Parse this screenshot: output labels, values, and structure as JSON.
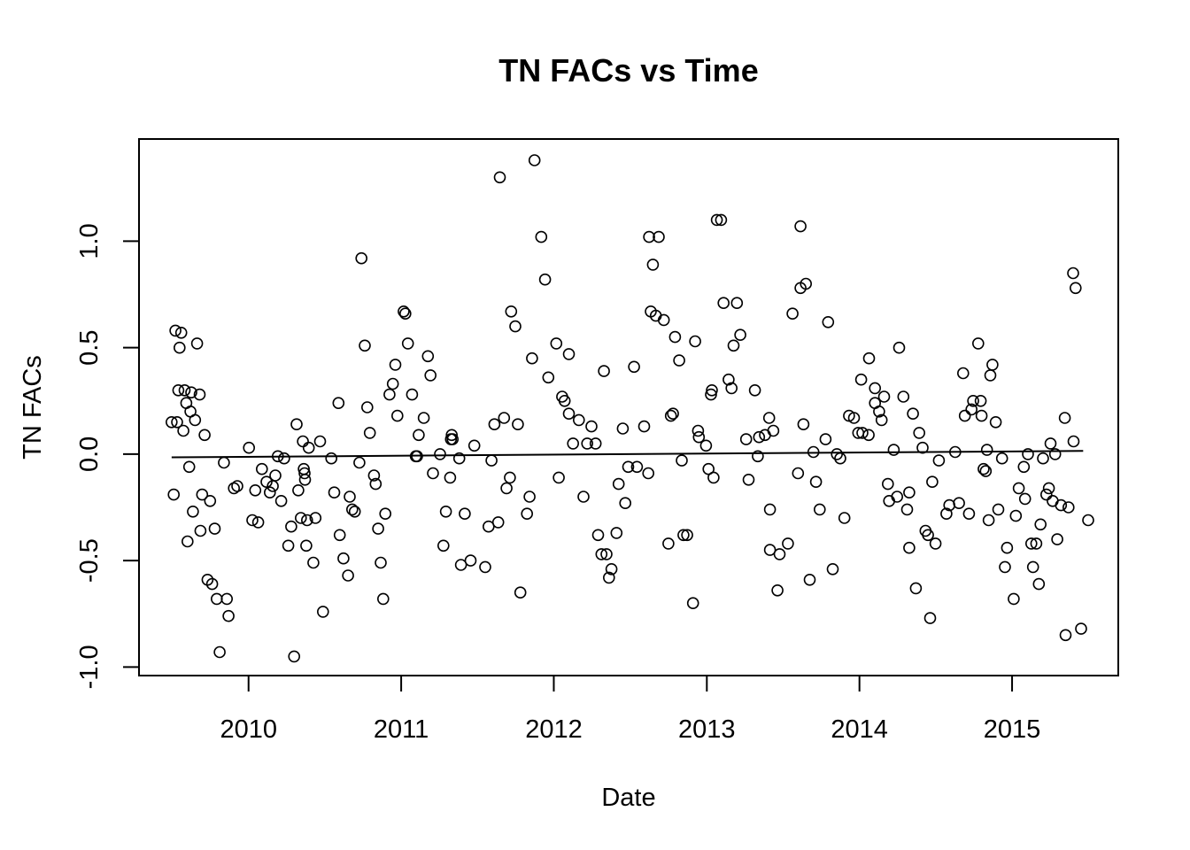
{
  "chart_data": {
    "type": "scatter",
    "title": "TN FACs vs Time",
    "xlabel": "Date",
    "ylabel": "TN FACs",
    "x_ticks": [
      "2010",
      "2011",
      "2012",
      "2013",
      "2014",
      "2015"
    ],
    "y_ticks": [
      "-1.0",
      "-0.5",
      "0.0",
      "0.5",
      "1.0"
    ],
    "xlim": [
      "2009-04-14",
      "2015-09-12"
    ],
    "ylim": [
      -1.04,
      1.48
    ],
    "grid": false,
    "legend": "none",
    "colors": {
      "points": "#000000",
      "trend_line": "#000000",
      "frame": "#000000"
    },
    "trend_line": {
      "x": [
        "2009-07-01",
        "2015-06-20"
      ],
      "y": [
        -0.015,
        0.015
      ]
    },
    "points": [
      [
        "2009-07-01",
        0.15
      ],
      [
        "2009-07-06",
        -0.19
      ],
      [
        "2009-07-10",
        0.58
      ],
      [
        "2009-07-14",
        0.15
      ],
      [
        "2009-07-17",
        0.3
      ],
      [
        "2009-07-20",
        0.5
      ],
      [
        "2009-07-24",
        0.57
      ],
      [
        "2009-07-29",
        0.11
      ],
      [
        "2009-08-01",
        0.3
      ],
      [
        "2009-08-05",
        0.24
      ],
      [
        "2009-08-08",
        -0.41
      ],
      [
        "2009-08-12",
        -0.06
      ],
      [
        "2009-08-15",
        0.2
      ],
      [
        "2009-08-17",
        0.29
      ],
      [
        "2009-08-21",
        -0.27
      ],
      [
        "2009-08-26",
        0.16
      ],
      [
        "2009-08-31",
        0.52
      ],
      [
        "2009-09-06",
        0.28
      ],
      [
        "2009-09-08",
        -0.36
      ],
      [
        "2009-09-12",
        -0.19
      ],
      [
        "2009-09-18",
        0.09
      ],
      [
        "2009-09-25",
        -0.59
      ],
      [
        "2009-10-01",
        -0.22
      ],
      [
        "2009-10-06",
        -0.61
      ],
      [
        "2009-10-12",
        -0.35
      ],
      [
        "2009-10-17",
        -0.68
      ],
      [
        "2009-10-24",
        -0.93
      ],
      [
        "2009-11-03",
        -0.04
      ],
      [
        "2009-11-10",
        -0.68
      ],
      [
        "2009-11-14",
        -0.76
      ],
      [
        "2009-11-27",
        -0.16
      ],
      [
        "2009-12-05",
        -0.15
      ],
      [
        "2010-01-02",
        0.03
      ],
      [
        "2010-01-10",
        -0.31
      ],
      [
        "2010-01-17",
        -0.17
      ],
      [
        "2010-01-24",
        -0.32
      ],
      [
        "2010-02-02",
        -0.07
      ],
      [
        "2010-02-13",
        -0.13
      ],
      [
        "2010-02-21",
        -0.18
      ],
      [
        "2010-02-28",
        -0.15
      ],
      [
        "2010-03-06",
        -0.1
      ],
      [
        "2010-03-12",
        -0.01
      ],
      [
        "2010-03-20",
        -0.22
      ],
      [
        "2010-03-27",
        -0.02
      ],
      [
        "2010-04-06",
        -0.43
      ],
      [
        "2010-04-13",
        -0.34
      ],
      [
        "2010-04-20",
        -0.95
      ],
      [
        "2010-04-26",
        0.14
      ],
      [
        "2010-04-30",
        -0.17
      ],
      [
        "2010-05-06",
        -0.3
      ],
      [
        "2010-05-11",
        0.06
      ],
      [
        "2010-05-13",
        -0.07
      ],
      [
        "2010-05-15",
        -0.09
      ],
      [
        "2010-05-16",
        -0.12
      ],
      [
        "2010-05-19",
        -0.43
      ],
      [
        "2010-05-21",
        -0.31
      ],
      [
        "2010-05-25",
        0.03
      ],
      [
        "2010-06-05",
        -0.51
      ],
      [
        "2010-06-10",
        -0.3
      ],
      [
        "2010-06-21",
        0.06
      ],
      [
        "2010-06-28",
        -0.74
      ],
      [
        "2010-07-18",
        -0.02
      ],
      [
        "2010-07-25",
        -0.18
      ],
      [
        "2010-08-04",
        0.24
      ],
      [
        "2010-08-07",
        -0.38
      ],
      [
        "2010-08-16",
        -0.49
      ],
      [
        "2010-08-27",
        -0.57
      ],
      [
        "2010-08-31",
        -0.2
      ],
      [
        "2010-09-06",
        -0.26
      ],
      [
        "2010-09-12",
        -0.27
      ],
      [
        "2010-09-23",
        -0.04
      ],
      [
        "2010-09-28",
        0.92
      ],
      [
        "2010-10-06",
        0.51
      ],
      [
        "2010-10-12",
        0.22
      ],
      [
        "2010-10-18",
        0.1
      ],
      [
        "2010-10-28",
        -0.1
      ],
      [
        "2010-11-01",
        -0.14
      ],
      [
        "2010-11-07",
        -0.35
      ],
      [
        "2010-11-13",
        -0.51
      ],
      [
        "2010-11-19",
        -0.68
      ],
      [
        "2010-11-24",
        -0.28
      ],
      [
        "2010-12-04",
        0.28
      ],
      [
        "2010-12-12",
        0.33
      ],
      [
        "2010-12-18",
        0.42
      ],
      [
        "2010-12-23",
        0.18
      ],
      [
        "2011-01-07",
        0.67
      ],
      [
        "2011-01-11",
        0.66
      ],
      [
        "2011-01-17",
        0.52
      ],
      [
        "2011-01-27",
        0.28
      ],
      [
        "2011-02-05",
        -0.01
      ],
      [
        "2011-02-08",
        -0.01
      ],
      [
        "2011-02-12",
        0.09
      ],
      [
        "2011-02-24",
        0.17
      ],
      [
        "2011-03-06",
        0.46
      ],
      [
        "2011-03-12",
        0.37
      ],
      [
        "2011-03-18",
        -0.09
      ],
      [
        "2011-04-04",
        0.0
      ],
      [
        "2011-04-12",
        -0.43
      ],
      [
        "2011-04-18",
        -0.27
      ],
      [
        "2011-04-28",
        -0.11
      ],
      [
        "2011-04-30",
        0.07
      ],
      [
        "2011-05-02",
        0.09
      ],
      [
        "2011-05-04",
        0.07
      ],
      [
        "2011-05-20",
        -0.02
      ],
      [
        "2011-05-24",
        -0.52
      ],
      [
        "2011-06-02",
        -0.28
      ],
      [
        "2011-06-16",
        -0.5
      ],
      [
        "2011-06-25",
        0.04
      ],
      [
        "2011-07-21",
        -0.53
      ],
      [
        "2011-07-29",
        -0.34
      ],
      [
        "2011-08-05",
        -0.03
      ],
      [
        "2011-08-12",
        0.14
      ],
      [
        "2011-08-21",
        -0.32
      ],
      [
        "2011-08-25",
        1.3
      ],
      [
        "2011-09-04",
        0.17
      ],
      [
        "2011-09-10",
        -0.16
      ],
      [
        "2011-09-18",
        -0.11
      ],
      [
        "2011-09-21",
        0.67
      ],
      [
        "2011-10-01",
        0.6
      ],
      [
        "2011-10-07",
        0.14
      ],
      [
        "2011-10-13",
        -0.65
      ],
      [
        "2011-10-29",
        -0.28
      ],
      [
        "2011-11-04",
        -0.2
      ],
      [
        "2011-11-10",
        0.45
      ],
      [
        "2011-11-16",
        1.38
      ],
      [
        "2011-12-02",
        1.02
      ],
      [
        "2011-12-11",
        0.82
      ],
      [
        "2011-12-19",
        0.36
      ],
      [
        "2012-01-07",
        0.52
      ],
      [
        "2012-01-13",
        -0.11
      ],
      [
        "2012-01-21",
        0.27
      ],
      [
        "2012-01-27",
        0.25
      ],
      [
        "2012-02-06",
        0.47
      ],
      [
        "2012-02-06",
        0.19
      ],
      [
        "2012-02-16",
        0.05
      ],
      [
        "2012-03-01",
        0.16
      ],
      [
        "2012-03-12",
        -0.2
      ],
      [
        "2012-03-21",
        0.05
      ],
      [
        "2012-03-31",
        0.13
      ],
      [
        "2012-04-10",
        0.05
      ],
      [
        "2012-04-16",
        -0.38
      ],
      [
        "2012-04-24",
        -0.47
      ],
      [
        "2012-04-30",
        0.39
      ],
      [
        "2012-05-06",
        -0.47
      ],
      [
        "2012-05-12",
        -0.58
      ],
      [
        "2012-05-18",
        -0.54
      ],
      [
        "2012-05-30",
        -0.37
      ],
      [
        "2012-06-04",
        -0.14
      ],
      [
        "2012-06-14",
        0.12
      ],
      [
        "2012-06-20",
        -0.23
      ],
      [
        "2012-06-27",
        -0.06
      ],
      [
        "2012-07-11",
        0.41
      ],
      [
        "2012-07-18",
        -0.06
      ],
      [
        "2012-08-04",
        0.13
      ],
      [
        "2012-08-14",
        -0.09
      ],
      [
        "2012-08-16",
        1.02
      ],
      [
        "2012-08-20",
        0.67
      ],
      [
        "2012-08-25",
        0.89
      ],
      [
        "2012-09-01",
        0.65
      ],
      [
        "2012-09-08",
        1.02
      ],
      [
        "2012-09-20",
        0.63
      ],
      [
        "2012-10-01",
        -0.42
      ],
      [
        "2012-10-07",
        0.18
      ],
      [
        "2012-10-12",
        0.19
      ],
      [
        "2012-10-17",
        0.55
      ],
      [
        "2012-10-27",
        0.44
      ],
      [
        "2012-11-02",
        -0.03
      ],
      [
        "2012-11-06",
        -0.38
      ],
      [
        "2012-11-15",
        -0.38
      ],
      [
        "2012-11-29",
        -0.7
      ],
      [
        "2012-12-04",
        0.53
      ],
      [
        "2012-12-11",
        0.11
      ],
      [
        "2012-12-13",
        0.08
      ],
      [
        "2012-12-30",
        0.04
      ],
      [
        "2013-01-05",
        -0.07
      ],
      [
        "2013-01-11",
        0.28
      ],
      [
        "2013-01-13",
        0.3
      ],
      [
        "2013-01-17",
        -0.11
      ],
      [
        "2013-01-25",
        1.1
      ],
      [
        "2013-02-04",
        1.1
      ],
      [
        "2013-02-10",
        0.71
      ],
      [
        "2013-02-22",
        0.35
      ],
      [
        "2013-03-01",
        0.31
      ],
      [
        "2013-03-06",
        0.51
      ],
      [
        "2013-03-14",
        0.71
      ],
      [
        "2013-03-22",
        0.56
      ],
      [
        "2013-04-05",
        0.07
      ],
      [
        "2013-04-11",
        -0.12
      ],
      [
        "2013-04-26",
        0.3
      ],
      [
        "2013-05-03",
        -0.01
      ],
      [
        "2013-05-06",
        0.08
      ],
      [
        "2013-05-20",
        0.09
      ],
      [
        "2013-05-30",
        0.17
      ],
      [
        "2013-06-01",
        -0.26
      ],
      [
        "2013-06-01",
        -0.45
      ],
      [
        "2013-06-09",
        0.11
      ],
      [
        "2013-06-19",
        -0.64
      ],
      [
        "2013-06-24",
        -0.47
      ],
      [
        "2013-07-14",
        -0.42
      ],
      [
        "2013-07-25",
        0.66
      ],
      [
        "2013-08-07",
        -0.09
      ],
      [
        "2013-08-13",
        0.78
      ],
      [
        "2013-08-13",
        1.07
      ],
      [
        "2013-08-20",
        0.14
      ],
      [
        "2013-08-26",
        0.8
      ],
      [
        "2013-09-04",
        -0.59
      ],
      [
        "2013-09-13",
        0.01
      ],
      [
        "2013-09-19",
        -0.13
      ],
      [
        "2013-09-28",
        -0.26
      ],
      [
        "2013-10-12",
        0.07
      ],
      [
        "2013-10-18",
        0.62
      ],
      [
        "2013-10-29",
        -0.54
      ],
      [
        "2013-11-08",
        0.0
      ],
      [
        "2013-11-16",
        -0.02
      ],
      [
        "2013-11-26",
        -0.3
      ],
      [
        "2013-12-07",
        0.18
      ],
      [
        "2013-12-19",
        0.17
      ],
      [
        "2013-12-29",
        0.1
      ],
      [
        "2014-01-05",
        0.35
      ],
      [
        "2014-01-08",
        0.1
      ],
      [
        "2014-01-23",
        0.09
      ],
      [
        "2014-01-24",
        0.45
      ],
      [
        "2014-02-07",
        0.31
      ],
      [
        "2014-02-07",
        0.24
      ],
      [
        "2014-02-17",
        0.2
      ],
      [
        "2014-02-23",
        0.16
      ],
      [
        "2014-03-01",
        0.27
      ],
      [
        "2014-03-10",
        -0.14
      ],
      [
        "2014-03-13",
        -0.22
      ],
      [
        "2014-03-24",
        0.02
      ],
      [
        "2014-04-01",
        -0.2
      ],
      [
        "2014-04-06",
        0.5
      ],
      [
        "2014-04-16",
        0.27
      ],
      [
        "2014-04-25",
        -0.26
      ],
      [
        "2014-04-30",
        -0.18
      ],
      [
        "2014-04-30",
        -0.44
      ],
      [
        "2014-05-09",
        0.19
      ],
      [
        "2014-05-16",
        -0.63
      ],
      [
        "2014-05-24",
        0.1
      ],
      [
        "2014-06-01",
        0.03
      ],
      [
        "2014-06-08",
        -0.36
      ],
      [
        "2014-06-14",
        -0.38
      ],
      [
        "2014-06-19",
        -0.77
      ],
      [
        "2014-06-24",
        -0.13
      ],
      [
        "2014-07-02",
        -0.42
      ],
      [
        "2014-07-10",
        -0.03
      ],
      [
        "2014-07-28",
        -0.28
      ],
      [
        "2014-08-04",
        -0.24
      ],
      [
        "2014-08-18",
        0.01
      ],
      [
        "2014-08-27",
        -0.23
      ],
      [
        "2014-09-06",
        0.38
      ],
      [
        "2014-09-10",
        0.18
      ],
      [
        "2014-09-20",
        -0.28
      ],
      [
        "2014-09-26",
        0.21
      ],
      [
        "2014-09-30",
        0.25
      ],
      [
        "2014-10-12",
        0.52
      ],
      [
        "2014-10-18",
        0.25
      ],
      [
        "2014-10-20",
        0.18
      ],
      [
        "2014-10-25",
        -0.07
      ],
      [
        "2014-10-30",
        -0.08
      ],
      [
        "2014-11-02",
        0.02
      ],
      [
        "2014-11-06",
        -0.31
      ],
      [
        "2014-11-10",
        0.37
      ],
      [
        "2014-11-15",
        0.42
      ],
      [
        "2014-11-23",
        0.15
      ],
      [
        "2014-11-29",
        -0.26
      ],
      [
        "2014-12-08",
        -0.02
      ],
      [
        "2014-12-15",
        -0.53
      ],
      [
        "2014-12-20",
        -0.44
      ],
      [
        "2015-01-05",
        -0.68
      ],
      [
        "2015-01-10",
        -0.29
      ],
      [
        "2015-01-17",
        -0.16
      ],
      [
        "2015-01-29",
        -0.06
      ],
      [
        "2015-02-01",
        -0.21
      ],
      [
        "2015-02-08",
        0.0
      ],
      [
        "2015-02-16",
        -0.42
      ],
      [
        "2015-02-20",
        -0.53
      ],
      [
        "2015-02-28",
        -0.42
      ],
      [
        "2015-03-06",
        -0.61
      ],
      [
        "2015-03-10",
        -0.33
      ],
      [
        "2015-03-16",
        -0.02
      ],
      [
        "2015-03-24",
        -0.19
      ],
      [
        "2015-03-30",
        -0.16
      ],
      [
        "2015-04-03",
        0.05
      ],
      [
        "2015-04-08",
        -0.22
      ],
      [
        "2015-04-14",
        0.0
      ],
      [
        "2015-04-19",
        -0.4
      ],
      [
        "2015-04-28",
        -0.24
      ],
      [
        "2015-05-07",
        0.17
      ],
      [
        "2015-05-09",
        -0.85
      ],
      [
        "2015-05-16",
        -0.25
      ],
      [
        "2015-05-27",
        0.85
      ],
      [
        "2015-05-28",
        0.06
      ],
      [
        "2015-06-02",
        0.78
      ],
      [
        "2015-06-15",
        -0.82
      ],
      [
        "2015-07-02",
        -0.31
      ]
    ]
  }
}
